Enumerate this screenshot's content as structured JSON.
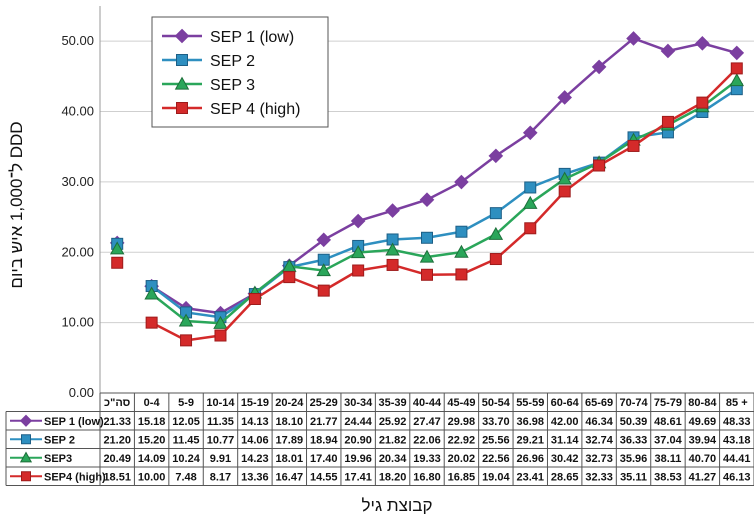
{
  "chart_data": {
    "type": "line",
    "xlabel": "קבוצת גיל",
    "ylabel": "DDD ל־1,000 איש ביום",
    "ylim": [
      0,
      55
    ],
    "yticks": [
      "0.00",
      "10.00",
      "20.00",
      "30.00",
      "40.00",
      "50.00"
    ],
    "grid": true,
    "legend_position": "top-left",
    "categories": [
      "סה\"כ",
      "0-4",
      "5-9",
      "10-14",
      "15-19",
      "20-24",
      "25-29",
      "30-34",
      "35-39",
      "40-44",
      "45-49",
      "50-54",
      "55-59",
      "60-64",
      "65-69",
      "70-74",
      "75-79",
      "80-84",
      "85 +"
    ],
    "series": [
      {
        "name": "SEP 1 (low)",
        "table_label": "SEP 1 (low)",
        "color": "#7b3fa0",
        "marker": "diamond",
        "values": [
          21.33,
          15.18,
          12.05,
          11.35,
          14.13,
          18.1,
          21.77,
          24.44,
          25.92,
          27.47,
          29.98,
          33.7,
          36.98,
          42.0,
          46.34,
          50.39,
          48.61,
          49.69,
          48.33
        ],
        "labels": [
          "21.33",
          "15.18",
          "12.05",
          "11.35",
          "14.13",
          "18.10",
          "21.77",
          "24.44",
          "25.92",
          "27.47",
          "29.98",
          "33.70",
          "36.98",
          "42.00",
          "46.34",
          "50.39",
          "48.61",
          "49.69",
          "48.33"
        ]
      },
      {
        "name": "SEP 2",
        "table_label": "SEP 2",
        "color": "#2e8fc0",
        "marker": "square",
        "values": [
          21.2,
          15.2,
          11.45,
          10.77,
          14.06,
          17.89,
          18.94,
          20.9,
          21.82,
          22.06,
          22.92,
          25.56,
          29.21,
          31.14,
          32.74,
          36.33,
          37.04,
          39.94,
          43.18
        ],
        "labels": [
          "21.20",
          "15.20",
          "11.45",
          "10.77",
          "14.06",
          "17.89",
          "18.94",
          "20.90",
          "21.82",
          "22.06",
          "22.92",
          "25.56",
          "29.21",
          "31.14",
          "32.74",
          "36.33",
          "37.04",
          "39.94",
          "43.18"
        ]
      },
      {
        "name": "SEP 3",
        "table_label": "SEP3",
        "color": "#2aa65a",
        "marker": "triangle",
        "values": [
          20.49,
          14.09,
          10.24,
          9.91,
          14.23,
          18.01,
          17.4,
          19.96,
          20.34,
          19.33,
          20.02,
          22.56,
          26.96,
          30.42,
          32.73,
          35.96,
          38.11,
          40.7,
          44.41
        ],
        "labels": [
          "20.49",
          "14.09",
          "10.24",
          "9.91",
          "14.23",
          "18.01",
          "17.40",
          "19.96",
          "20.34",
          "19.33",
          "20.02",
          "22.56",
          "26.96",
          "30.42",
          "32.73",
          "35.96",
          "38.11",
          "40.70",
          "44.41"
        ]
      },
      {
        "name": "SEP 4 (high)",
        "table_label": "SEP4 (high)",
        "color": "#d42a2a",
        "marker": "square",
        "values": [
          18.51,
          10.0,
          7.48,
          8.17,
          13.36,
          16.47,
          14.55,
          17.41,
          18.2,
          16.8,
          16.85,
          19.04,
          23.41,
          28.65,
          32.33,
          35.11,
          38.53,
          41.27,
          46.13
        ],
        "labels": [
          "18.51",
          "10.00",
          "7.48",
          "8.17",
          "13.36",
          "16.47",
          "14.55",
          "17.41",
          "18.20",
          "16.80",
          "16.85",
          "19.04",
          "23.41",
          "28.65",
          "32.33",
          "35.11",
          "38.53",
          "41.27",
          "46.13"
        ]
      }
    ]
  }
}
